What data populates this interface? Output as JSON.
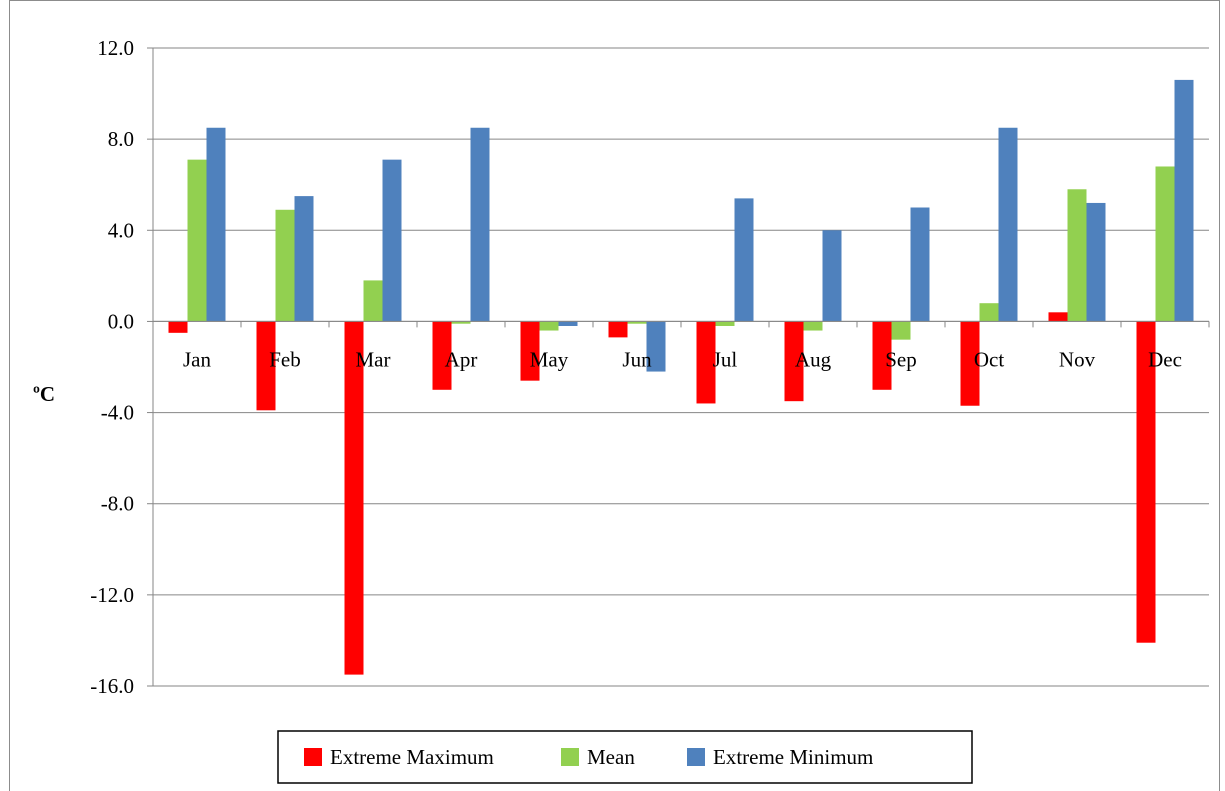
{
  "chart_data": {
    "type": "bar",
    "title": "",
    "xlabel": "",
    "ylabel": "ºC",
    "ylim": [
      -16,
      12
    ],
    "yticks": [
      12,
      8,
      4,
      0,
      -4,
      -8,
      -12,
      -16
    ],
    "ytick_labels": [
      "12.0",
      "8.0",
      "4.0",
      "0.0",
      "-4.0",
      "-8.0",
      "-12.0",
      "-16.0"
    ],
    "grid": true,
    "legend_position": "bottom",
    "categories": [
      "Jan",
      "Feb",
      "Mar",
      "Apr",
      "May",
      "Jun",
      "Jul",
      "Aug",
      "Sep",
      "Oct",
      "Nov",
      "Dec"
    ],
    "series": [
      {
        "name": "Extreme Maximum",
        "color": "#ff0000",
        "values": [
          -0.5,
          -3.9,
          -15.5,
          -3.0,
          -2.6,
          -0.7,
          -3.6,
          -3.5,
          -3.0,
          -3.7,
          0.4,
          -14.1
        ]
      },
      {
        "name": "Mean",
        "color": "#92d050",
        "values": [
          7.1,
          4.9,
          1.8,
          -0.1,
          -0.4,
          -0.1,
          -0.2,
          -0.4,
          -0.8,
          0.8,
          5.8,
          6.8
        ]
      },
      {
        "name": "Extreme Minimum",
        "color": "#4f81bd",
        "values": [
          8.5,
          5.5,
          7.1,
          8.5,
          -0.2,
          -2.2,
          5.4,
          4.0,
          5.0,
          8.5,
          5.2,
          10.6
        ]
      }
    ]
  }
}
